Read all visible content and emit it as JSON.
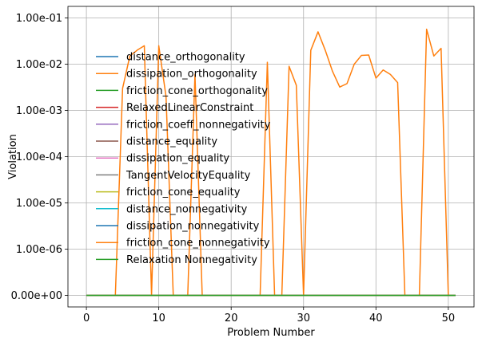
{
  "chart_data": {
    "type": "line",
    "xlabel": "Problem Number",
    "ylabel": "Violation",
    "xlim": [
      -2.55,
      53.55
    ],
    "ylim_decades": [
      -7.25,
      -0.75
    ],
    "zero_label_decade": -7,
    "y_scale": "symlog",
    "x_ticks": [
      0,
      10,
      20,
      30,
      40,
      50
    ],
    "y_ticks": [
      {
        "value": 0,
        "label": "0.00e+00"
      },
      {
        "value": 1e-06,
        "label": "1.00e-06"
      },
      {
        "value": 1e-05,
        "label": "1.00e-05"
      },
      {
        "value": 0.0001,
        "label": "1.00e-04"
      },
      {
        "value": 0.001,
        "label": "1.00e-03"
      },
      {
        "value": 0.01,
        "label": "1.00e-02"
      },
      {
        "value": 0.1,
        "label": "1.00e-01"
      }
    ],
    "grid": true,
    "legend_placement": "center-left",
    "x": [
      0,
      1,
      2,
      3,
      4,
      5,
      6,
      7,
      8,
      9,
      10,
      11,
      12,
      13,
      14,
      15,
      16,
      17,
      18,
      19,
      20,
      21,
      22,
      23,
      24,
      25,
      26,
      27,
      28,
      29,
      30,
      31,
      32,
      33,
      34,
      35,
      36,
      37,
      38,
      39,
      40,
      41,
      42,
      43,
      44,
      45,
      46,
      47,
      48,
      49,
      50,
      51
    ],
    "series": [
      {
        "name": "distance_orthogonality",
        "color": "#1f77b4",
        "values": "zero"
      },
      {
        "name": "dissipation_orthogonality",
        "color": "#ff7f0e",
        "values": [
          0,
          0,
          0,
          0,
          0,
          0.003,
          0.015,
          0.02,
          0.025,
          0,
          0.025,
          0.002,
          0,
          0,
          0,
          0.006,
          0,
          0,
          0,
          0,
          0,
          0,
          0,
          0,
          0,
          0.011,
          0,
          0,
          0.009,
          0.0035,
          0,
          0.02,
          0.05,
          0.02,
          0.007,
          0.0032,
          0.0038,
          0.01,
          0.0155,
          0.0158,
          0.005,
          0.0075,
          0.006,
          0.004,
          0,
          0,
          0,
          0.057,
          0.015,
          0.022,
          0,
          0
        ]
      },
      {
        "name": "friction_cone_orthogonality",
        "color": "#2ca02c",
        "values": "zero"
      },
      {
        "name": "RelaxedLinearConstraint",
        "color": "#d62728",
        "values": "zero"
      },
      {
        "name": "friction_coeff_nonnegativity",
        "color": "#9467bd",
        "values": "zero"
      },
      {
        "name": "distance_equality",
        "color": "#8c564b",
        "values": "zero"
      },
      {
        "name": "dissipation_equality",
        "color": "#e377c2",
        "values": "zero"
      },
      {
        "name": "TangentVelocityEquality",
        "color": "#7f7f7f",
        "values": "zero"
      },
      {
        "name": "friction_cone_equality",
        "color": "#bcbd22",
        "values": "zero"
      },
      {
        "name": "distance_nonnegativity",
        "color": "#17becf",
        "values": "zero"
      },
      {
        "name": "dissipation_nonnegativity",
        "color": "#1f77b4",
        "values": "zero"
      },
      {
        "name": "friction_cone_nonnegativity",
        "color": "#ff7f0e",
        "values": "zero"
      },
      {
        "name": "Relaxation Nonnegativity",
        "color": "#2ca02c",
        "values": "zero"
      }
    ]
  }
}
